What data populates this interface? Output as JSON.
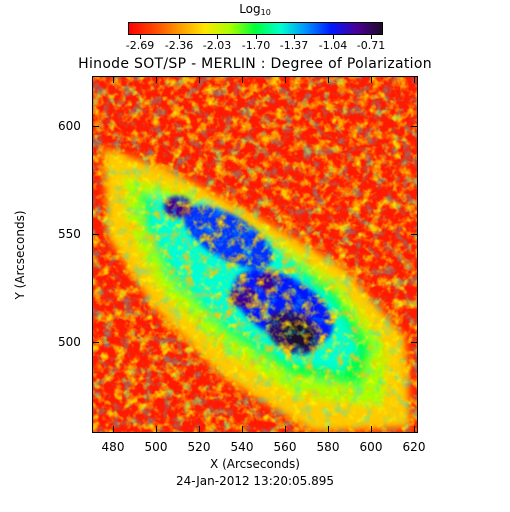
{
  "colorbar": {
    "title": "Log",
    "title_subscript": "10",
    "tick_labels": [
      "-2.69",
      "-2.36",
      "-2.03",
      "-1.70",
      "-1.37",
      "-1.04",
      "-0.71"
    ]
  },
  "plot": {
    "title": "Hinode SOT/SP - MERLIN : Degree of Polarization",
    "x_label": "X (Arcseconds)",
    "y_label": "Y (Arcseconds)",
    "x_ticks": [
      "480",
      "500",
      "520",
      "540",
      "560",
      "580",
      "600",
      "620"
    ],
    "y_ticks": [
      "500",
      "550",
      "600"
    ],
    "timestamp": "24-Jan-2012 13:20:05.895"
  },
  "chart_data": {
    "type": "heatmap",
    "title": "Hinode SOT/SP - MERLIN : Degree of Polarization",
    "xlabel": "X (Arcseconds)",
    "ylabel": "Y (Arcseconds)",
    "colorbar_label": "Log10",
    "color_range": [
      -2.69,
      -0.71
    ],
    "xlim": [
      470,
      622
    ],
    "ylim": [
      458,
      623
    ],
    "colors": [
      "#ff0000",
      "#ff9a00",
      "#ffe600",
      "#00ff3a",
      "#00ffd0",
      "#0018ff",
      "#1e0a2a"
    ]
  }
}
